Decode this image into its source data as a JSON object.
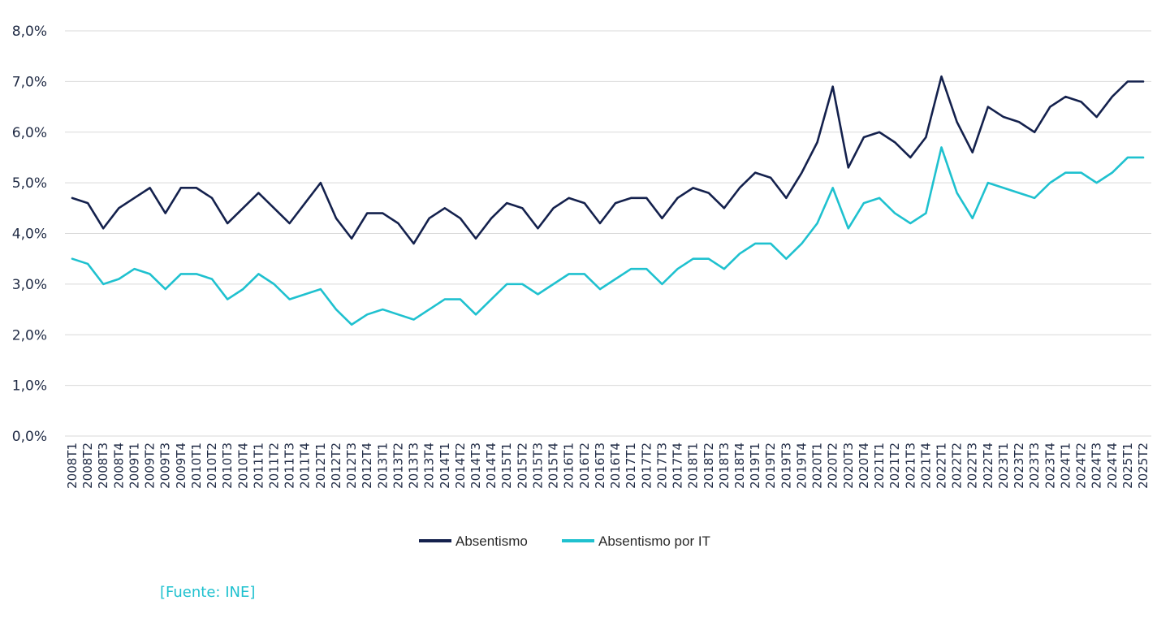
{
  "chart_data": {
    "type": "line",
    "ylim": [
      0,
      8
    ],
    "y_ticks": [
      "0,0%",
      "1,0%",
      "2,0%",
      "3,0%",
      "4,0%",
      "5,0%",
      "6,0%",
      "7,0%",
      "8,0%"
    ],
    "grid": "horizontal",
    "legend_position": "bottom",
    "categories": [
      "2008T1",
      "2008T2",
      "2008T3",
      "2008T4",
      "2009T1",
      "2009T2",
      "2009T3",
      "2009T4",
      "2010T1",
      "2010T2",
      "2010T3",
      "2010T4",
      "2011T1",
      "2011T2",
      "2011T3",
      "2011T4",
      "2012T1",
      "2012T2",
      "2012T3",
      "2012T4",
      "2013T1",
      "2013T2",
      "2013T3",
      "2013T4",
      "2014T1",
      "2014T2",
      "2014T3",
      "2014T4",
      "2015T1",
      "2015T2",
      "2015T3",
      "2015T4",
      "2016T1",
      "2016T2",
      "2016T3",
      "2016T4",
      "2017T1",
      "2017T2",
      "2017T3",
      "2017T4",
      "2018T1",
      "2018T2",
      "2018T3",
      "2018T4",
      "2019T1",
      "2019T2",
      "2019T3",
      "2019T4",
      "2020T1",
      "2020T2",
      "2020T3",
      "2020T4",
      "2021T1",
      "2021T2",
      "2021T3",
      "2021T4",
      "2022T1",
      "2022T2",
      "2022T3",
      "2022T4",
      "2023T1",
      "2023T2",
      "2023T3",
      "2023T4",
      "2024T1",
      "2024T2",
      "2024T3",
      "2024T4",
      "2025T1",
      "2025T2"
    ],
    "series": [
      {
        "name": "Absentismo",
        "color": "#14214d",
        "values": [
          4.7,
          4.6,
          4.1,
          4.5,
          4.7,
          4.9,
          4.4,
          4.9,
          4.9,
          4.7,
          4.2,
          4.5,
          4.8,
          4.5,
          4.2,
          4.6,
          5.0,
          4.3,
          3.9,
          4.4,
          4.4,
          4.2,
          3.8,
          4.3,
          4.5,
          4.3,
          3.9,
          4.3,
          4.6,
          4.5,
          4.1,
          4.5,
          4.7,
          4.6,
          4.2,
          4.6,
          4.7,
          4.7,
          4.3,
          4.7,
          4.9,
          4.8,
          4.5,
          4.9,
          5.2,
          5.1,
          4.7,
          5.2,
          5.8,
          6.9,
          5.3,
          5.9,
          6.0,
          5.8,
          5.5,
          5.9,
          7.1,
          6.2,
          5.6,
          6.5,
          6.3,
          6.2,
          6.0,
          6.5,
          6.7,
          6.6,
          6.3,
          6.7,
          7.0,
          7.0
        ]
      },
      {
        "name": "Absentismo por IT",
        "color": "#1fc1cf",
        "values": [
          3.5,
          3.4,
          3.0,
          3.1,
          3.3,
          3.2,
          2.9,
          3.2,
          3.2,
          3.1,
          2.7,
          2.9,
          3.2,
          3.0,
          2.7,
          2.8,
          2.9,
          2.5,
          2.2,
          2.4,
          2.5,
          2.4,
          2.3,
          2.5,
          2.7,
          2.7,
          2.4,
          2.7,
          3.0,
          3.0,
          2.8,
          3.0,
          3.2,
          3.2,
          2.9,
          3.1,
          3.3,
          3.3,
          3.0,
          3.3,
          3.5,
          3.5,
          3.3,
          3.6,
          3.8,
          3.8,
          3.5,
          3.8,
          4.2,
          4.9,
          4.1,
          4.6,
          4.7,
          4.4,
          4.2,
          4.4,
          5.7,
          4.8,
          4.3,
          5.0,
          4.9,
          4.8,
          4.7,
          5.0,
          5.2,
          5.2,
          5.0,
          5.2,
          5.5,
          5.5
        ]
      }
    ]
  },
  "source": "[Fuente: INE]"
}
